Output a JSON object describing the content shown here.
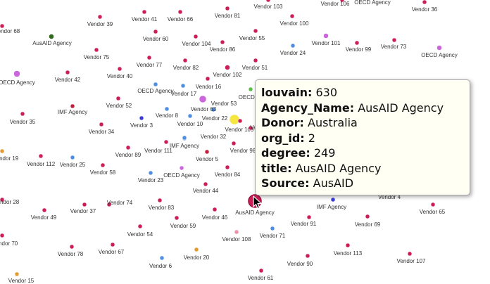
{
  "colors": {
    "vendor": "#cc1e55",
    "imf": "#c01e3c",
    "oecd": "#cc66dd",
    "ausaid": "#2d6a1a",
    "blue": "#4f8ee0",
    "navy": "#3a3ad8",
    "green": "#5cbf4a",
    "orange": "#e49a30",
    "yellow": "#f5e640",
    "pink": "#ee8fa8",
    "highlight": "#cc1e55",
    "tooltip_bg": "#fffff3"
  },
  "nodes": [
    {
      "label": "Vendor 18",
      "color": "vendor"
    },
    {
      "label": "Vendor 68",
      "color": "vendor"
    },
    {
      "label": "Vendor 39",
      "color": "vendor"
    },
    {
      "label": "Vendor 41",
      "color": "vendor"
    },
    {
      "label": "Vendor 66",
      "color": "vendor"
    },
    {
      "label": "Vendor 81",
      "color": "vendor"
    },
    {
      "label": "Vendor 103",
      "color": "vendor"
    },
    {
      "label": "Vendor 106",
      "color": "vendor"
    },
    {
      "label": "OECD Agency",
      "color": "oecd"
    },
    {
      "label": "Vendor 36",
      "color": "vendor"
    },
    {
      "label": "Vendor 100",
      "color": "vendor"
    },
    {
      "label": "AusAID Agency",
      "color": "ausaid"
    },
    {
      "label": "Vendor 60",
      "color": "vendor"
    },
    {
      "label": "Vendor 104",
      "color": "vendor"
    },
    {
      "label": "Vendor 86",
      "color": "vendor"
    },
    {
      "label": "Vendor 55",
      "color": "vendor"
    },
    {
      "label": "Vendor 24",
      "color": "blue"
    },
    {
      "label": "Vendor 101",
      "color": "oecd"
    },
    {
      "label": "Vendor 99",
      "color": "vendor"
    },
    {
      "label": "Vendor 73",
      "color": "vendor"
    },
    {
      "label": "OECD Agency",
      "color": "oecd"
    },
    {
      "label": "Vendor 75",
      "color": "vendor"
    },
    {
      "label": "Vendor 77",
      "color": "vendor"
    },
    {
      "label": "Vendor 82",
      "color": "vendor"
    },
    {
      "label": "Vendor 102",
      "color": "vendor"
    },
    {
      "label": "Vendor 51",
      "color": "vendor"
    },
    {
      "label": "Vendor 42",
      "color": "vendor"
    },
    {
      "label": "Vendor 40",
      "color": "vendor"
    },
    {
      "label": "OECD Agency",
      "color": "oecd"
    },
    {
      "label": "OECD Agency",
      "color": "blue"
    },
    {
      "label": "Vendor 17",
      "color": "blue"
    },
    {
      "label": "Vendor 16",
      "color": "vendor"
    },
    {
      "label": "OECD Ag",
      "color": "green"
    },
    {
      "label": "Vendor 53",
      "color": "oecd"
    },
    {
      "label": "Vendor 52",
      "color": "vendor"
    },
    {
      "label": "IMF Agency",
      "color": "imf"
    },
    {
      "label": "Vendor 63",
      "color": "blue"
    },
    {
      "label": "Vendor 35",
      "color": "vendor"
    },
    {
      "label": "Vendor 3",
      "color": "navy"
    },
    {
      "label": "Vendor 8",
      "color": "blue"
    },
    {
      "label": "Vendor 10",
      "color": "blue"
    },
    {
      "label": "Vendor 22",
      "color": "yellow"
    },
    {
      "label": "Vendor 109",
      "color": "vendor"
    },
    {
      "label": "Vendor 34",
      "color": "vendor"
    },
    {
      "label": "Vendor 32",
      "color": "blue"
    },
    {
      "label": "IMF Agency",
      "color": "blue"
    },
    {
      "label": "Ve",
      "color": "vendor"
    },
    {
      "label": "Vendor 111",
      "color": "vendor"
    },
    {
      "label": "Vendor 89",
      "color": "vendor"
    },
    {
      "label": "Vendor 98",
      "color": "vendor"
    },
    {
      "label": "Vendor 19",
      "color": "orange"
    },
    {
      "label": "Vendor 112",
      "color": "vendor"
    },
    {
      "label": "Vendor 25",
      "color": "blue"
    },
    {
      "label": "Vendor 5",
      "color": "imf"
    },
    {
      "label": "Vendor 58",
      "color": "vendor"
    },
    {
      "label": "Vendor 23",
      "color": "blue"
    },
    {
      "label": "OECD Agency",
      "color": "oecd"
    },
    {
      "label": "Vendor 84",
      "color": "vendor"
    },
    {
      "label": "Vendor 44",
      "color": "vendor"
    },
    {
      "label": "Vendor 4",
      "color": "vendor"
    },
    {
      "label": "IMF Agency",
      "color": "navy"
    },
    {
      "label": "Vendor 28",
      "color": "vendor"
    },
    {
      "label": "Vendor 74",
      "color": "vendor"
    },
    {
      "label": "Vendor 83",
      "color": "vendor"
    },
    {
      "label": "Vendor 65",
      "color": "vendor"
    },
    {
      "label": "Vendor 49",
      "color": "vendor"
    },
    {
      "label": "Vendor 37",
      "color": "vendor"
    },
    {
      "label": "Vendor 46",
      "color": "vendor"
    },
    {
      "label": "Vendor 59",
      "color": "vendor"
    },
    {
      "label": "Vendor 91",
      "color": "vendor"
    },
    {
      "label": "Vendor 69",
      "color": "vendor"
    },
    {
      "label": "Vendor 54",
      "color": "vendor"
    },
    {
      "label": "Vendor 108",
      "color": "pink"
    },
    {
      "label": "Vendor 71",
      "color": "blue"
    },
    {
      "label": "Vendor 70",
      "color": "vendor"
    },
    {
      "label": "Vendor 78",
      "color": "vendor"
    },
    {
      "label": "Vendor 67",
      "color": "vendor"
    },
    {
      "label": "Vendor 113",
      "color": "vendor"
    },
    {
      "label": "Vendor 20",
      "color": "orange"
    },
    {
      "label": "Vendor 90",
      "color": "vendor"
    },
    {
      "label": "Vendor 107",
      "color": "vendor"
    },
    {
      "label": "Vendor 6",
      "color": "blue"
    },
    {
      "label": "Vendor 61",
      "color": "vendor"
    },
    {
      "label": "Vendor 15",
      "color": "orange"
    },
    {
      "label": "AusAID Agency",
      "color": "highlight"
    }
  ],
  "tooltip": {
    "rows": [
      {
        "key": "louvain:",
        "value": "630"
      },
      {
        "key": "Agency_Name:",
        "value": "AusAID Agency"
      },
      {
        "key": "Donor:",
        "value": "Australia"
      },
      {
        "key": "org_id:",
        "value": "2"
      },
      {
        "key": "degree:",
        "value": "249"
      },
      {
        "key": "title:",
        "value": "AusAID Agency"
      },
      {
        "key": "Source:",
        "value": "AusAID"
      }
    ]
  }
}
